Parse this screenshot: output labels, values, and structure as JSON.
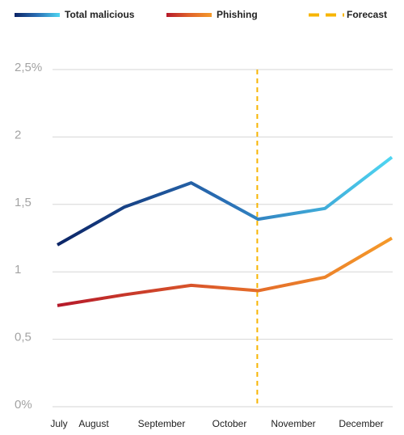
{
  "chart_data": {
    "type": "line",
    "categories": [
      "July",
      "August",
      "September",
      "October",
      "November",
      "December"
    ],
    "series": [
      {
        "name": "Total malicious",
        "color": [
          "#0b2466",
          "#2a6fb5",
          "#4fd6f2"
        ],
        "values": [
          1.2,
          1.48,
          1.66,
          1.39,
          1.47,
          1.85
        ]
      },
      {
        "name": "Phishing",
        "color": [
          "#b5192a",
          "#e0622a",
          "#f59a2a"
        ],
        "values": [
          0.75,
          0.83,
          0.9,
          0.86,
          0.96,
          1.25
        ]
      }
    ],
    "forecast": {
      "name": "Forecast",
      "color": "#f7b500",
      "category": "October"
    },
    "ylim": [
      0,
      2.5
    ],
    "yticks": [
      {
        "value": 0,
        "label": "0%"
      },
      {
        "value": 0.5,
        "label": "0,5"
      },
      1,
      {
        "value": 1.5,
        "label": "1,5"
      },
      2,
      {
        "value": 2.5,
        "label": "2,5%"
      }
    ],
    "grid": true
  }
}
